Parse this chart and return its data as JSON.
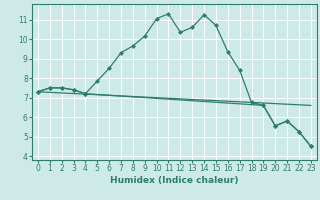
{
  "xlabel": "Humidex (Indice chaleur)",
  "background_color": "#ceeae8",
  "grid_color": "#ffffff",
  "line_color": "#2e7d6e",
  "xlim": [
    -0.5,
    23.5
  ],
  "ylim": [
    3.8,
    11.8
  ],
  "xticks": [
    0,
    1,
    2,
    3,
    4,
    5,
    6,
    7,
    8,
    9,
    10,
    11,
    12,
    13,
    14,
    15,
    16,
    17,
    18,
    19,
    20,
    21,
    22,
    23
  ],
  "yticks": [
    4,
    5,
    6,
    7,
    8,
    9,
    10,
    11
  ],
  "line1_x": [
    0,
    1,
    2,
    3,
    4,
    5,
    6,
    7,
    8,
    9,
    10,
    11,
    12,
    13,
    14,
    15,
    16,
    17,
    18,
    19,
    20,
    21,
    22,
    23
  ],
  "line1_y": [
    7.3,
    7.5,
    7.5,
    7.4,
    7.2,
    7.85,
    8.5,
    9.3,
    9.65,
    10.15,
    11.05,
    11.3,
    10.35,
    10.6,
    11.25,
    10.7,
    9.35,
    8.4,
    6.75,
    6.6,
    5.55,
    5.8,
    5.25,
    4.5
  ],
  "line2_x": [
    0,
    1,
    2,
    3,
    4,
    19,
    20,
    21,
    22,
    23
  ],
  "line2_y": [
    7.3,
    7.5,
    7.5,
    7.4,
    7.2,
    6.6,
    5.55,
    5.8,
    5.25,
    4.5
  ],
  "line3_x": [
    0,
    23
  ],
  "line3_y": [
    7.3,
    6.6
  ]
}
